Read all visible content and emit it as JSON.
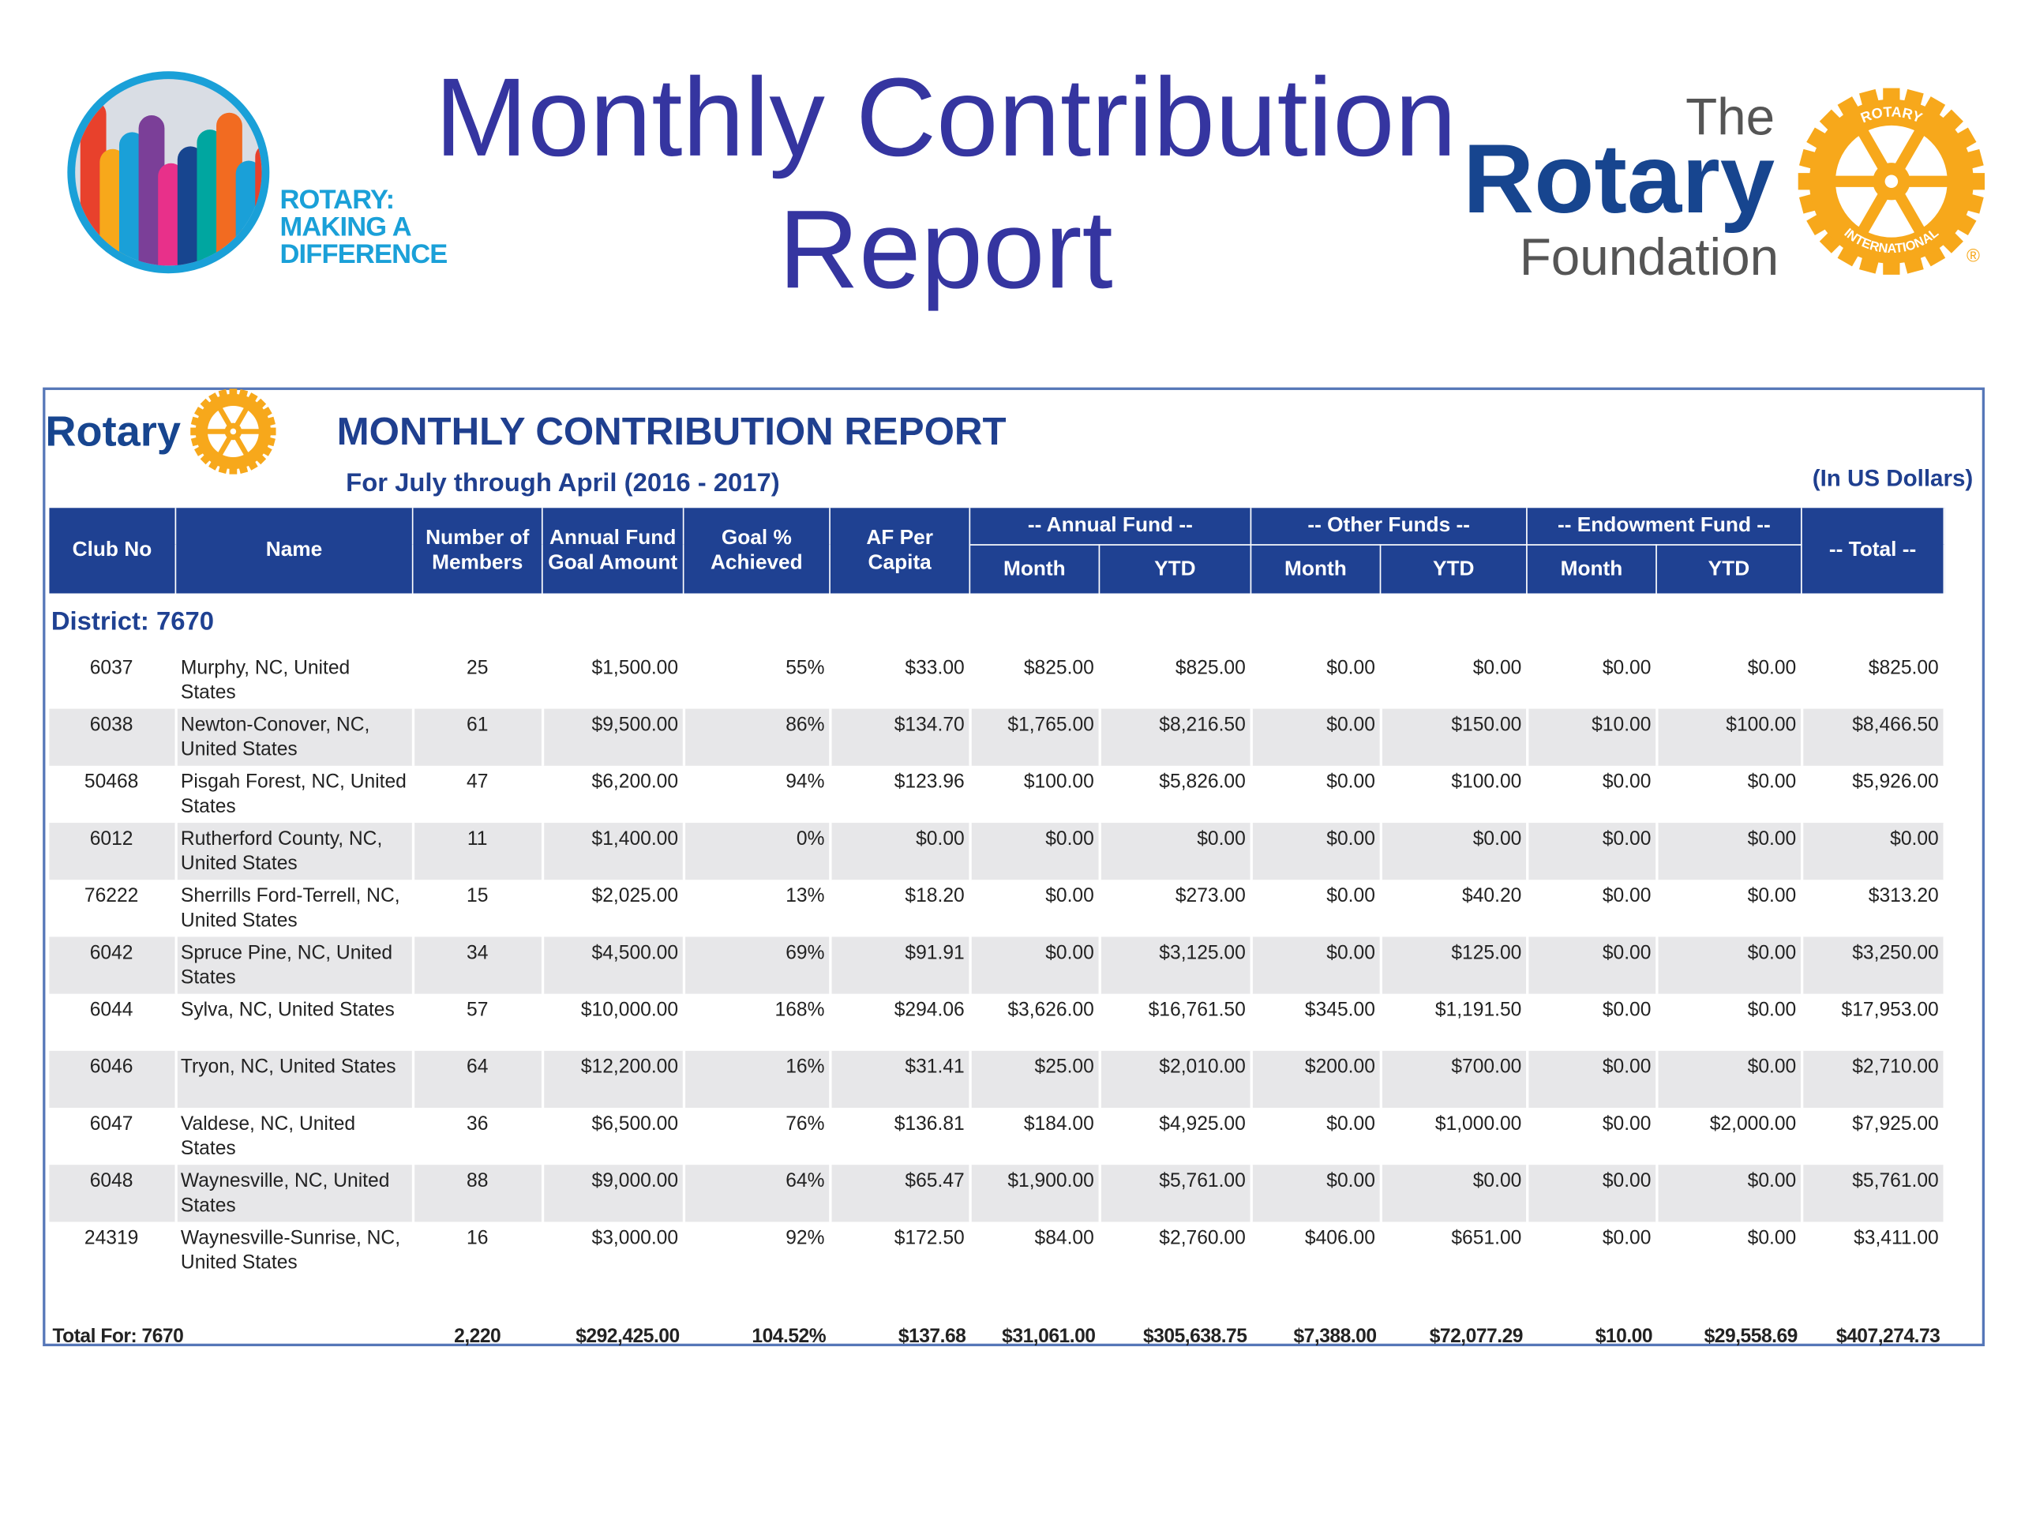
{
  "header": {
    "title_line1": "Monthly Contribution",
    "title_line2": "Report"
  },
  "logos": {
    "left": [
      "ROTARY:",
      "MAKING A",
      "DIFFERENCE"
    ],
    "foundation": {
      "the": "The",
      "rotary": "Rotary",
      "foundation": "Foundation",
      "emblem_top": "ROTARY",
      "emblem_bottom": "INTERNATIONAL",
      "registered": "®"
    }
  },
  "report": {
    "brand": "Rotary",
    "title": "MONTHLY CONTRIBUTION REPORT",
    "subtitle": "For July through April (2016 - 2017)",
    "currency_note": "(In US Dollars)"
  },
  "table": {
    "columns": [
      "Club No",
      "Name",
      "Number of Members",
      "Annual Fund Goal Amount",
      "Goal % Achieved",
      "AF Per Capita"
    ],
    "groups": [
      {
        "label": "-- Annual Fund --",
        "sub": [
          "Month",
          "YTD"
        ]
      },
      {
        "label": "-- Other Funds --",
        "sub": [
          "Month",
          "YTD"
        ]
      },
      {
        "label": "-- Endowment Fund --",
        "sub": [
          "Month",
          "YTD"
        ]
      }
    ],
    "total_column": "-- Total --",
    "district": "District: 7670",
    "rows": [
      [
        "6037",
        "Murphy, NC, United States",
        "25",
        "$1,500.00",
        "55%",
        "$33.00",
        "$825.00",
        "$825.00",
        "$0.00",
        "$0.00",
        "$0.00",
        "$0.00",
        "$825.00"
      ],
      [
        "6038",
        "Newton-Conover, NC, United States",
        "61",
        "$9,500.00",
        "86%",
        "$134.70",
        "$1,765.00",
        "$8,216.50",
        "$0.00",
        "$150.00",
        "$10.00",
        "$100.00",
        "$8,466.50"
      ],
      [
        "50468",
        "Pisgah Forest, NC, United States",
        "47",
        "$6,200.00",
        "94%",
        "$123.96",
        "$100.00",
        "$5,826.00",
        "$0.00",
        "$100.00",
        "$0.00",
        "$0.00",
        "$5,926.00"
      ],
      [
        "6012",
        "Rutherford County, NC, United States",
        "11",
        "$1,400.00",
        "0%",
        "$0.00",
        "$0.00",
        "$0.00",
        "$0.00",
        "$0.00",
        "$0.00",
        "$0.00",
        "$0.00"
      ],
      [
        "76222",
        "Sherrills Ford-Terrell, NC, United States",
        "15",
        "$2,025.00",
        "13%",
        "$18.20",
        "$0.00",
        "$273.00",
        "$0.00",
        "$40.20",
        "$0.00",
        "$0.00",
        "$313.20"
      ],
      [
        "6042",
        "Spruce Pine, NC, United States",
        "34",
        "$4,500.00",
        "69%",
        "$91.91",
        "$0.00",
        "$3,125.00",
        "$0.00",
        "$125.00",
        "$0.00",
        "$0.00",
        "$3,250.00"
      ],
      [
        "6044",
        "Sylva, NC, United States",
        "57",
        "$10,000.00",
        "168%",
        "$294.06",
        "$3,626.00",
        "$16,761.50",
        "$345.00",
        "$1,191.50",
        "$0.00",
        "$0.00",
        "$17,953.00"
      ],
      [
        "6046",
        "Tryon, NC, United States",
        "64",
        "$12,200.00",
        "16%",
        "$31.41",
        "$25.00",
        "$2,010.00",
        "$200.00",
        "$700.00",
        "$0.00",
        "$0.00",
        "$2,710.00"
      ],
      [
        "6047",
        "Valdese, NC, United States",
        "36",
        "$6,500.00",
        "76%",
        "$136.81",
        "$184.00",
        "$4,925.00",
        "$0.00",
        "$1,000.00",
        "$0.00",
        "$2,000.00",
        "$7,925.00"
      ],
      [
        "6048",
        "Waynesville, NC, United States",
        "88",
        "$9,000.00",
        "64%",
        "$65.47",
        "$1,900.00",
        "$5,761.00",
        "$0.00",
        "$0.00",
        "$0.00",
        "$0.00",
        "$5,761.00"
      ],
      [
        "24319",
        "Waynesville-Sunrise, NC, United States",
        "16",
        "$3,000.00",
        "92%",
        "$172.50",
        "$84.00",
        "$2,760.00",
        "$406.00",
        "$651.00",
        "$0.00",
        "$0.00",
        "$3,411.00"
      ]
    ],
    "total_row": [
      "Total For: 7670",
      "2,220",
      "$292,425.00",
      "104.52%",
      "$137.68",
      "$31,061.00",
      "$305,638.75",
      "$7,388.00",
      "$72,077.29",
      "$10.00",
      "$29,558.69",
      "$407,274.73"
    ]
  }
}
